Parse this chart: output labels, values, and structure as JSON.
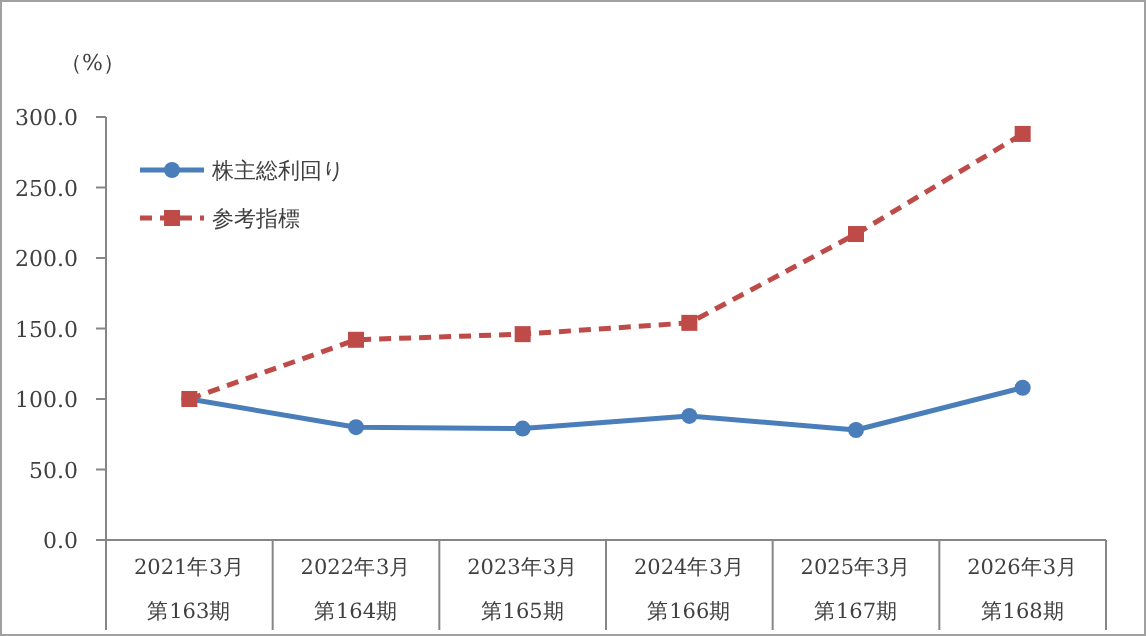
{
  "chart_data": {
    "type": "line",
    "ylabel": "（%）",
    "categories": [
      "2021年3月第163期",
      "2022年3月第164期",
      "2023年3月第165期",
      "2024年3月第166期",
      "2025年3月第167期",
      "2026年3月第168期"
    ],
    "series": [
      {
        "name": "株主総利回り",
        "color": "#4a7ebb",
        "marker": "circle",
        "line_style": "solid",
        "values": [
          100,
          80,
          79,
          88,
          78,
          108
        ]
      },
      {
        "name": "参考指標",
        "color": "#be4b48",
        "marker": "square",
        "line_style": "dashed",
        "values": [
          100,
          142,
          146,
          154,
          217,
          288
        ]
      }
    ],
    "ylim": [
      0,
      300
    ],
    "yticks": [
      {
        "value": 0,
        "label": "0.0"
      },
      {
        "value": 50,
        "label": "50.0"
      },
      {
        "value": 100,
        "label": "100.0"
      },
      {
        "value": 150,
        "label": "150.0"
      },
      {
        "value": 200,
        "label": "200.0"
      },
      {
        "value": 250,
        "label": "250.0"
      },
      {
        "value": 300,
        "label": "300.0"
      }
    ],
    "grid": false,
    "legend": "top left"
  }
}
